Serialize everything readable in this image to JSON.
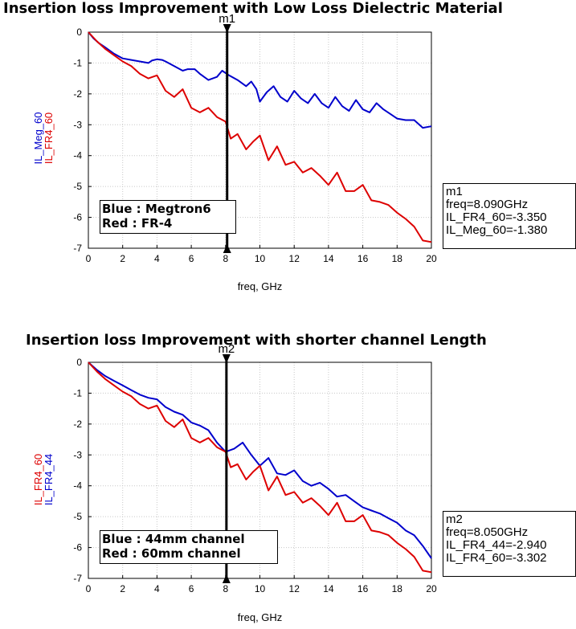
{
  "chart_data": [
    {
      "type": "line",
      "title": "Insertion loss Improvement with Low Loss Dielectric Material",
      "xlabel": "freq, GHz",
      "ylabels": [
        "IL_Meg_60",
        "IL_FR4_60"
      ],
      "xlim": [
        0,
        20
      ],
      "ylim": [
        -7,
        0
      ],
      "xticks": [
        0,
        2,
        4,
        6,
        8,
        10,
        12,
        14,
        16,
        18,
        20
      ],
      "yticks": [
        0,
        -1,
        -2,
        -3,
        -4,
        -5,
        -6,
        -7
      ],
      "grid": true,
      "legend": {
        "placement": "bottom-left",
        "lines": [
          "Blue : Megtron6",
          "Red : FR-4"
        ]
      },
      "marker": {
        "name": "m1",
        "x": 8.09,
        "lines": [
          "m1",
          "freq=8.090GHz",
          "IL_FR4_60=-3.350",
          "IL_Meg_60=-1.380"
        ]
      },
      "series": [
        {
          "name": "IL_Meg_60",
          "color": "#0000cc",
          "x": [
            0,
            0.3,
            0.6,
            1.0,
            1.5,
            2.0,
            2.5,
            3.0,
            3.5,
            3.7,
            4.0,
            4.3,
            4.5,
            5.0,
            5.5,
            5.8,
            6.2,
            6.5,
            7.0,
            7.5,
            7.8,
            8.2,
            8.7,
            9.2,
            9.5,
            9.8,
            10.0,
            10.4,
            10.8,
            11.2,
            11.6,
            12.0,
            12.4,
            12.8,
            13.2,
            13.6,
            14.0,
            14.4,
            14.8,
            15.2,
            15.6,
            16.0,
            16.4,
            16.8,
            17.2,
            17.6,
            18.0,
            18.5,
            19.0,
            19.5,
            20.0
          ],
          "values": [
            0,
            -0.2,
            -0.35,
            -0.5,
            -0.7,
            -0.85,
            -0.9,
            -0.95,
            -1.0,
            -0.92,
            -0.88,
            -0.9,
            -0.95,
            -1.1,
            -1.25,
            -1.2,
            -1.2,
            -1.35,
            -1.55,
            -1.45,
            -1.25,
            -1.4,
            -1.55,
            -1.75,
            -1.6,
            -1.85,
            -2.25,
            -1.95,
            -1.75,
            -2.1,
            -2.25,
            -1.9,
            -2.15,
            -2.3,
            -2.0,
            -2.3,
            -2.45,
            -2.1,
            -2.4,
            -2.55,
            -2.2,
            -2.5,
            -2.6,
            -2.3,
            -2.5,
            -2.65,
            -2.8,
            -2.85,
            -2.85,
            -3.1,
            -3.05
          ]
        },
        {
          "name": "IL_FR4_60",
          "color": "#dd0000",
          "x": [
            0,
            0.5,
            1.0,
            1.5,
            2.0,
            2.5,
            3.0,
            3.5,
            4.0,
            4.5,
            5.0,
            5.5,
            6.0,
            6.5,
            7.0,
            7.5,
            8.0,
            8.3,
            8.7,
            9.2,
            9.6,
            10.0,
            10.5,
            11.0,
            11.5,
            12.0,
            12.5,
            13.0,
            13.5,
            14.0,
            14.5,
            15.0,
            15.5,
            16.0,
            16.5,
            17.0,
            17.5,
            18.0,
            18.5,
            19.0,
            19.5,
            20.0
          ],
          "values": [
            0,
            -0.3,
            -0.55,
            -0.75,
            -0.95,
            -1.1,
            -1.35,
            -1.5,
            -1.4,
            -1.9,
            -2.1,
            -1.85,
            -2.45,
            -2.6,
            -2.45,
            -2.75,
            -2.9,
            -3.45,
            -3.3,
            -3.8,
            -3.55,
            -3.35,
            -4.15,
            -3.7,
            -4.3,
            -4.2,
            -4.55,
            -4.4,
            -4.65,
            -4.95,
            -4.55,
            -5.15,
            -5.15,
            -4.95,
            -5.45,
            -5.5,
            -5.6,
            -5.85,
            -6.05,
            -6.3,
            -6.75,
            -6.8
          ]
        }
      ]
    },
    {
      "type": "line",
      "title": "Insertion loss Improvement with shorter channel Length",
      "xlabel": "freq, GHz",
      "ylabels": [
        "IL_FR4_60",
        "IL_FR4_44"
      ],
      "xlim": [
        0,
        20
      ],
      "ylim": [
        -7,
        0
      ],
      "xticks": [
        0,
        2,
        4,
        6,
        8,
        10,
        12,
        14,
        16,
        18,
        20
      ],
      "yticks": [
        0,
        -1,
        -2,
        -3,
        -4,
        -5,
        -6,
        -7
      ],
      "grid": true,
      "legend": {
        "placement": "bottom-left",
        "lines": [
          "Blue : 44mm channel",
          "Red : 60mm channel"
        ]
      },
      "marker": {
        "name": "m2",
        "x": 8.05,
        "lines": [
          "m2",
          "freq=8.050GHz",
          "IL_FR4_44=-2.940",
          "IL_FR4_60=-3.302"
        ]
      },
      "series": [
        {
          "name": "IL_FR4_44",
          "color": "#0000cc",
          "x": [
            0,
            0.5,
            1.0,
            1.5,
            2.0,
            2.5,
            3.0,
            3.5,
            4.0,
            4.5,
            5.0,
            5.5,
            6.0,
            6.5,
            7.0,
            7.5,
            8.0,
            8.5,
            9.0,
            9.5,
            10.0,
            10.5,
            11.0,
            11.5,
            12.0,
            12.5,
            13.0,
            13.5,
            14.0,
            14.5,
            15.0,
            15.5,
            16.0,
            16.5,
            17.0,
            17.5,
            18.0,
            18.5,
            19.0,
            19.5,
            20.0
          ],
          "values": [
            0,
            -0.25,
            -0.45,
            -0.6,
            -0.75,
            -0.9,
            -1.05,
            -1.15,
            -1.2,
            -1.45,
            -1.6,
            -1.7,
            -1.95,
            -2.05,
            -2.2,
            -2.6,
            -2.9,
            -2.8,
            -2.6,
            -3.0,
            -3.35,
            -3.1,
            -3.6,
            -3.65,
            -3.5,
            -3.85,
            -4.0,
            -3.9,
            -4.1,
            -4.35,
            -4.3,
            -4.5,
            -4.7,
            -4.8,
            -4.9,
            -5.05,
            -5.2,
            -5.45,
            -5.6,
            -5.95,
            -6.35
          ]
        },
        {
          "name": "IL_FR4_60",
          "color": "#dd0000",
          "x": [
            0,
            0.5,
            1.0,
            1.5,
            2.0,
            2.5,
            3.0,
            3.5,
            4.0,
            4.5,
            5.0,
            5.5,
            6.0,
            6.5,
            7.0,
            7.5,
            8.0,
            8.3,
            8.7,
            9.2,
            9.6,
            10.0,
            10.5,
            11.0,
            11.5,
            12.0,
            12.5,
            13.0,
            13.5,
            14.0,
            14.5,
            15.0,
            15.5,
            16.0,
            16.5,
            17.0,
            17.5,
            18.0,
            18.5,
            19.0,
            19.5,
            20.0
          ],
          "values": [
            0,
            -0.3,
            -0.55,
            -0.75,
            -0.95,
            -1.1,
            -1.35,
            -1.5,
            -1.4,
            -1.9,
            -2.1,
            -1.85,
            -2.45,
            -2.6,
            -2.45,
            -2.75,
            -2.9,
            -3.4,
            -3.3,
            -3.8,
            -3.55,
            -3.35,
            -4.15,
            -3.7,
            -4.3,
            -4.2,
            -4.55,
            -4.4,
            -4.65,
            -4.95,
            -4.55,
            -5.15,
            -5.15,
            -4.95,
            -5.45,
            -5.5,
            -5.6,
            -5.85,
            -6.05,
            -6.3,
            -6.75,
            -6.8
          ]
        }
      ]
    }
  ]
}
